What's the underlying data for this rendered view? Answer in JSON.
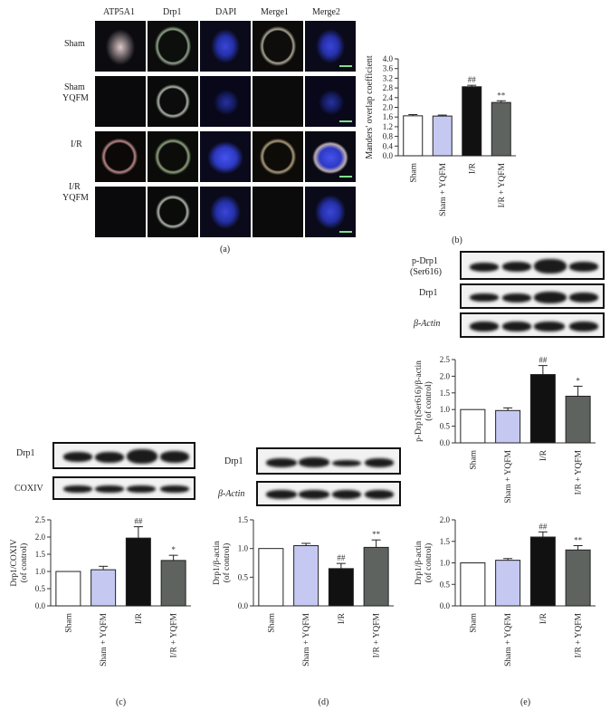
{
  "panel_a": {
    "columns": [
      "ATP5A1",
      "Drp1",
      "DAPI",
      "Merge1",
      "Merge2"
    ],
    "rows": [
      {
        "label_lines": [
          "Sham"
        ]
      },
      {
        "label_lines": [
          "Sham",
          "YQFM"
        ]
      },
      {
        "label_lines": [
          "I/R"
        ]
      },
      {
        "label_lines": [
          "I/R",
          "YQFM"
        ]
      }
    ],
    "caption": "(a)"
  },
  "colors": {
    "sham": "#ffffff",
    "sham_yqfm": "#c5c9f2",
    "ir": "#111111",
    "ir_yqfm": "#5f6360",
    "blot_band": "#1b1b1b",
    "dapi": "#3a46d8"
  },
  "groups": [
    "Sham",
    "Sham + YQFM",
    "I/R",
    "I/R + YQFM"
  ],
  "blots": {
    "c": [
      "Drp1",
      "COXIV"
    ],
    "d": [
      "Drp1",
      "β-Actin"
    ],
    "e": [
      "p-Drp1",
      "(Ser616)",
      "Drp1",
      "β-Actin"
    ]
  },
  "chart_data": [
    {
      "id": "b",
      "type": "bar",
      "caption": "(b)",
      "categories": [
        "Sham",
        "Sham + YQFM",
        "I/R",
        "I/R + YQFM"
      ],
      "values": [
        1.65,
        1.64,
        2.85,
        2.2
      ],
      "errors": [
        0.05,
        0.04,
        0.06,
        0.07
      ],
      "annotations": [
        "",
        "",
        "##",
        "**"
      ],
      "ylabel": "Manders' overlap coefficient",
      "ylim": [
        0,
        4.0
      ],
      "yticks": [
        "0.0",
        "0.4",
        "0.8",
        "1.2",
        "1.6",
        "2.0",
        "2.4",
        "2.8",
        "3.2",
        "3.6",
        "4.0"
      ],
      "ytick_values": [
        0,
        0.4,
        0.8,
        1.2,
        1.6,
        2.0,
        2.4,
        2.8,
        3.2,
        3.6,
        4.0
      ]
    },
    {
      "id": "c",
      "type": "bar",
      "caption": "(c)",
      "categories": [
        "Sham",
        "Sham + YQFM",
        "I/R",
        "I/R + YQFM"
      ],
      "values": [
        1.0,
        1.05,
        1.97,
        1.32
      ],
      "errors": [
        0,
        0.1,
        0.33,
        0.15
      ],
      "annotations": [
        "",
        "",
        "##",
        "*"
      ],
      "ylabel_lines": [
        "Drp1/COXIV",
        "(of control)"
      ],
      "ylim": [
        0,
        2.5
      ],
      "yticks": [
        "0.0",
        "0.5",
        "1.0",
        "1.5",
        "2.0",
        "2.5"
      ],
      "ytick_values": [
        0,
        0.5,
        1.0,
        1.5,
        2.0,
        2.5
      ]
    },
    {
      "id": "d",
      "type": "bar",
      "caption": "(d)",
      "categories": [
        "Sham",
        "Sham + YQFM",
        "I/R",
        "I/R + YQFM"
      ],
      "values": [
        1.0,
        1.05,
        0.65,
        1.02
      ],
      "errors": [
        0,
        0.04,
        0.09,
        0.13
      ],
      "annotations": [
        "",
        "",
        "##",
        "**"
      ],
      "ylabel_lines": [
        "Drp1/β-actin",
        "(of control)"
      ],
      "ylim": [
        0,
        1.5
      ],
      "yticks": [
        "0.0",
        "0.5",
        "1.0",
        "1.5"
      ],
      "ytick_values": [
        0,
        0.5,
        1.0,
        1.5
      ]
    },
    {
      "id": "e1",
      "type": "bar",
      "caption": "",
      "categories": [
        "Sham",
        "Sham + YQFM",
        "I/R",
        "I/R + YQFM"
      ],
      "values": [
        1.0,
        0.97,
        2.05,
        1.4
      ],
      "errors": [
        0,
        0.08,
        0.27,
        0.3
      ],
      "annotations": [
        "",
        "",
        "##",
        "*"
      ],
      "ylabel_lines": [
        "p-Drp1(Ser616)/β-actin",
        "(of control)"
      ],
      "ylim": [
        0,
        2.5
      ],
      "yticks": [
        "0.0",
        "0.5",
        "1.0",
        "1.5",
        "2.0",
        "2.5"
      ],
      "ytick_values": [
        0,
        0.5,
        1.0,
        1.5,
        2.0,
        2.5
      ]
    },
    {
      "id": "e2",
      "type": "bar",
      "caption": "(e)",
      "categories": [
        "Sham",
        "Sham + YQFM",
        "I/R",
        "I/R + YQFM"
      ],
      "values": [
        1.0,
        1.06,
        1.6,
        1.3
      ],
      "errors": [
        0,
        0.04,
        0.12,
        0.1
      ],
      "annotations": [
        "",
        "",
        "##",
        "**"
      ],
      "ylabel_lines": [
        "Drp1/β-actin",
        "(of control)"
      ],
      "ylim": [
        0,
        2.0
      ],
      "yticks": [
        "0.0",
        "0.5",
        "1.0",
        "1.5",
        "2.0"
      ],
      "ytick_values": [
        0,
        0.5,
        1.0,
        1.5,
        2.0
      ]
    }
  ]
}
